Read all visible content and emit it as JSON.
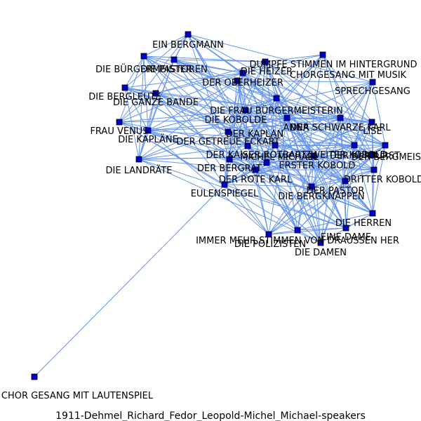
{
  "caption": "1911-Dehmel_Richard_Fedor_Leopold-Michel_Michael-speakers",
  "colors": {
    "edge": "#6495ed",
    "node": "#0000cd",
    "background": "#ffffff"
  },
  "nodes": [
    {
      "id": 0,
      "label": "EIN BERGMANN"
    },
    {
      "id": 1,
      "label": "DIE BÜRGERMEISTER"
    },
    {
      "id": 2,
      "label": "DIE PASTOREN"
    },
    {
      "id": 3,
      "label": "DUMPFE STIMMEN IM HINTERGRUND"
    },
    {
      "id": 4,
      "label": "DIE HEIZER"
    },
    {
      "id": 5,
      "label": "CHORGESANG MIT MUSIK"
    },
    {
      "id": 6,
      "label": "DER OBERHEIZER"
    },
    {
      "id": 7,
      "label": "SPRECHGESANG"
    },
    {
      "id": 8,
      "label": "DIE BERGLEUTE"
    },
    {
      "id": 9,
      "label": "DIE GANZE BANDE"
    },
    {
      "id": 10,
      "label": "DIE FRAU BÜRGERMEISTERIN"
    },
    {
      "id": 11,
      "label": "DIE KOBOLDE"
    },
    {
      "id": 12,
      "label": "DER SCHWARZE KARL"
    },
    {
      "id": 13,
      "label": "ANNA"
    },
    {
      "id": 14,
      "label": "LISE"
    },
    {
      "id": 15,
      "label": "FRAU VENUS"
    },
    {
      "id": 16,
      "label": "DER KAPLAN"
    },
    {
      "id": 17,
      "label": "DIE KAPLÄNE"
    },
    {
      "id": 18,
      "label": "DER GETREUE ECKART"
    },
    {
      "id": 19,
      "label": "DER KAISER ROTBART"
    },
    {
      "id": 20,
      "label": "ZWEITER KOBOLD"
    },
    {
      "id": 21,
      "label": "MICHEL MICHAEL"
    },
    {
      "id": 22,
      "label": "DER KURFÜRST"
    },
    {
      "id": 23,
      "label": "DER BERGMEISTER"
    },
    {
      "id": 24,
      "label": "DIE LANDRÄTE"
    },
    {
      "id": 25,
      "label": "DER BERGRAT"
    },
    {
      "id": 26,
      "label": "ERSTER KOBOLD"
    },
    {
      "id": 27,
      "label": "DER ROTE KARL"
    },
    {
      "id": 28,
      "label": "DRITTER KOBOLD"
    },
    {
      "id": 29,
      "label": "EULENSPIEGEL"
    },
    {
      "id": 30,
      "label": "DER PASTOR"
    },
    {
      "id": 31,
      "label": "DIE BERGKNAPPEN"
    },
    {
      "id": 32,
      "label": "DIE HERREN"
    },
    {
      "id": 33,
      "label": "EINE DAME"
    },
    {
      "id": 34,
      "label": "IMMER MEHR STIMMEN VON DRAUSSEN HER"
    },
    {
      "id": 35,
      "label": "DIE POLIZISTEN"
    },
    {
      "id": 36,
      "label": "DIE DAMEN"
    },
    {
      "id": 37,
      "label": "CHOR GESANG MIT LAUTENSPIEL"
    }
  ]
}
